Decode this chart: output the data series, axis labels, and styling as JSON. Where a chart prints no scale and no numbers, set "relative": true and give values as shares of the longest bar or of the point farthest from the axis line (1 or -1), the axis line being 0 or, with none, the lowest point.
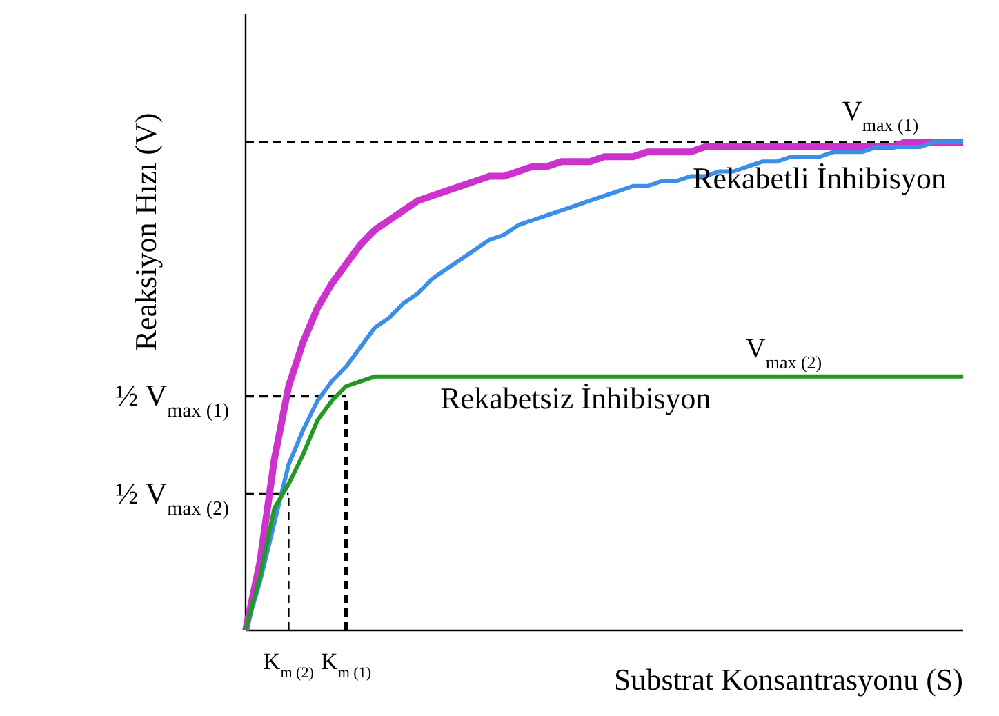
{
  "chart_data": {
    "type": "line",
    "relative": true,
    "xlabel": "Substrat Konsantrasyonu (S)",
    "ylabel": "Reaksiyon Hızı (V)",
    "categories": [
      null,
      null,
      null,
      "K$_{m (2)}$",
      null,
      null,
      null,
      "K$_{m (1)}$",
      null,
      null,
      null,
      null,
      null,
      null,
      null,
      null,
      null,
      null,
      null,
      null,
      null,
      null,
      null,
      null,
      null,
      null,
      null,
      null,
      null,
      null,
      null,
      null,
      null,
      null,
      null,
      null,
      null,
      null,
      null,
      null,
      null,
      null,
      null,
      null,
      null,
      null,
      null,
      null,
      null,
      null,
      null
    ],
    "series": [
      {
        "color": "#cc33cc",
        "values": [
          0,
          0.14,
          0.35,
          0.5,
          0.59,
          0.66,
          0.71,
          0.75,
          0.79,
          0.82,
          0.84,
          0.86,
          0.88,
          0.89,
          0.9,
          0.91,
          0.92,
          0.93,
          0.93,
          0.94,
          0.95,
          0.95,
          0.96,
          0.96,
          0.96,
          0.97,
          0.97,
          0.97,
          0.98,
          0.98,
          0.98,
          0.98,
          0.99,
          0.99,
          0.99,
          0.99,
          0.99,
          0.99,
          0.99,
          0.99,
          0.99,
          0.99,
          0.99,
          0.99,
          0.99,
          0.99,
          1,
          1,
          1,
          1,
          1
        ]
      },
      {
        "name": "Rekabetli İnhibisyon",
        "color": "#3d8ee8",
        "values": [
          0,
          0.1,
          0.22,
          0.34,
          0.41,
          0.47,
          0.51,
          0.54,
          0.58,
          0.62,
          0.64,
          0.67,
          0.69,
          0.72,
          0.74,
          0.76,
          0.78,
          0.8,
          0.81,
          0.83,
          0.84,
          0.85,
          0.86,
          0.87,
          0.88,
          0.89,
          0.9,
          0.91,
          0.91,
          0.92,
          0.92,
          0.93,
          0.93,
          0.94,
          0.94,
          0.95,
          0.96,
          0.96,
          0.97,
          0.97,
          0.97,
          0.98,
          0.98,
          0.98,
          0.99,
          0.99,
          0.99,
          0.99,
          1,
          1,
          1
        ]
      },
      {
        "name": "Rekabetsiz İnhibisyon",
        "color": "#229922",
        "values": [
          0,
          0.11,
          0.25,
          0.3,
          0.36,
          0.43,
          0.47,
          0.5,
          0.51,
          0.52,
          0.52,
          0.52,
          0.52,
          0.52,
          0.52,
          0.52,
          0.52,
          0.52,
          0.52,
          0.52,
          0.52,
          0.52,
          0.52,
          0.52,
          0.52,
          0.52,
          0.52,
          0.52,
          0.52,
          0.52,
          0.52,
          0.52,
          0.52,
          0.52,
          0.52,
          0.52,
          0.52,
          0.52,
          0.52,
          0.52,
          0.52,
          0.52,
          0.52,
          0.52,
          0.52,
          0.52,
          0.52,
          0.52,
          0.52,
          0.52,
          0.52
        ]
      }
    ],
    "ref_lines": [
      {
        "axis": "y",
        "value": 0.48,
        "label": "½ V$_{max (1)}$",
        "line_style": "dashed",
        "color": "#000000"
      },
      {
        "axis": "y",
        "value": 0.28,
        "label": "½ V$_{max (2)}$",
        "line_style": "dashed",
        "color": "#000000"
      },
      {
        "axis": "y",
        "value": 1,
        "label": "V$_{max (1)}$",
        "line_style": "dashed",
        "color": "#000000"
      },
      {
        "axis": "x",
        "value": "K$_{m (1)}$",
        "line_style": "dashed",
        "color": "#000000"
      },
      {
        "axis": "x",
        "value": "K$_{m (2)}$",
        "line_style": "dashed",
        "color": "#000000"
      }
    ],
    "annotations": [
      {
        "text": "V$_{max (2)}$",
        "y": 0.52
      }
    ]
  }
}
